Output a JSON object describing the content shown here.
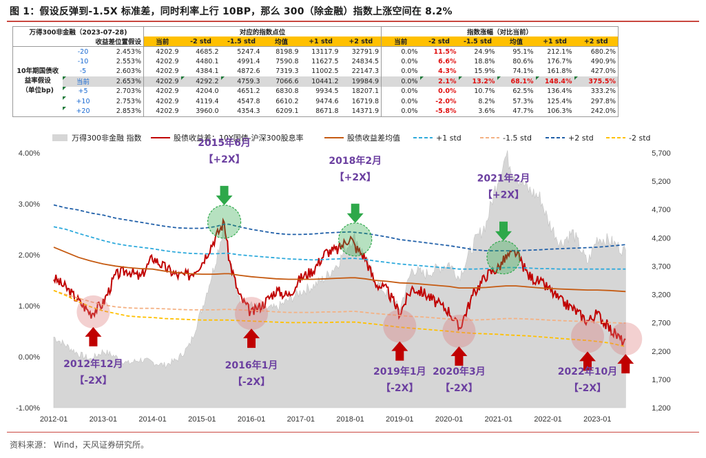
{
  "title": "图 1：假设反弹到-1.5X 标准差，同时利率上行 10BP，那么 300（除金融）指数上涨空间在 8.2%",
  "source": "资料来源：   Wind，天风证券研究所。",
  "table": {
    "corner_top": "万得300非金融（2023-07-28)",
    "corner_bottom": "收益差位置假设",
    "group_a": "对应的指数点位",
    "group_b": "指数涨幅（对比当前）",
    "row_group_label": "10年期国债收益率假设（单位bp)",
    "row_group_lines": [
      "10年期国债收",
      "益率假设",
      "（单位bp)"
    ],
    "columns": [
      "当前",
      "-2 std",
      "-1.5 std",
      "均值",
      "+1 std",
      "+2 std"
    ],
    "rows": [
      {
        "bp": "-20",
        "rate": "2.453%",
        "points": [
          "4202.9",
          "4685.2",
          "5247.4",
          "8198.9",
          "13117.9",
          "32791.9"
        ],
        "pct": [
          "0.0%",
          "11.5%",
          "24.9%",
          "95.1%",
          "212.1%",
          "680.2%"
        ]
      },
      {
        "bp": "-10",
        "rate": "2.553%",
        "points": [
          "4202.9",
          "4480.1",
          "4991.4",
          "7590.8",
          "11627.5",
          "24834.5"
        ],
        "pct": [
          "0.0%",
          "6.6%",
          "18.8%",
          "80.6%",
          "176.7%",
          "490.9%"
        ]
      },
      {
        "bp": "-5",
        "rate": "2.603%",
        "points": [
          "4202.9",
          "4384.1",
          "4872.6",
          "7319.3",
          "11002.5",
          "22147.3"
        ],
        "pct": [
          "0.0%",
          "4.3%",
          "15.9%",
          "74.1%",
          "161.8%",
          "427.0%"
        ]
      },
      {
        "bp": "当前",
        "rate": "2.653%",
        "points": [
          "4202.9",
          "4292.2",
          "4759.3",
          "7066.6",
          "10441.2",
          "19984.9"
        ],
        "pct": [
          "0.0%",
          "2.1%",
          "13.2%",
          "68.1%",
          "148.4%",
          "375.5%"
        ]
      },
      {
        "bp": "+5",
        "rate": "2.703%",
        "points": [
          "4202.9",
          "4204.0",
          "4651.2",
          "6830.8",
          "9934.5",
          "18207.1"
        ],
        "pct": [
          "0.0%",
          "0.0%",
          "10.7%",
          "62.5%",
          "136.4%",
          "333.2%"
        ]
      },
      {
        "bp": "+10",
        "rate": "2.753%",
        "points": [
          "4202.9",
          "4119.4",
          "4547.8",
          "6610.2",
          "9474.6",
          "16719.8"
        ],
        "pct": [
          "0.0%",
          "-2.0%",
          "8.2%",
          "57.3%",
          "125.4%",
          "297.8%"
        ]
      },
      {
        "bp": "+20",
        "rate": "2.853%",
        "points": [
          "4202.9",
          "3960.0",
          "4354.3",
          "6209.1",
          "8671.8",
          "14371.9"
        ],
        "pct": [
          "0.0%",
          "-5.8%",
          "3.6%",
          "47.7%",
          "106.3%",
          "242.0%"
        ]
      }
    ]
  },
  "chart_data": {
    "type": "line",
    "legend": [
      "万得300非金融 指数",
      "股债收益差：10Y国债-沪深300股息率",
      "股债收益差均值",
      "+1 std",
      "-1.5 std",
      "+2 std",
      "-2 std"
    ],
    "x_ticks": [
      "2012-01",
      "2013-01",
      "2014-01",
      "2015-01",
      "2016-01",
      "2017-01",
      "2018-01",
      "2019-01",
      "2020-01",
      "2021-01",
      "2022-01",
      "2023-01"
    ],
    "y_left_ticks": [
      "4.00%",
      "3.00%",
      "2.00%",
      "1.00%",
      "0.00%",
      "-1.00%"
    ],
    "y_right_ticks": [
      "5,700",
      "5,200",
      "4,700",
      "4,200",
      "3,700",
      "3,200",
      "2,700",
      "2,200",
      "1,700",
      "1,200"
    ],
    "ylim_left": [
      -1.0,
      4.0
    ],
    "ylim_right": [
      1200,
      5700
    ],
    "x": [
      2012.0,
      2012.25,
      2012.5,
      2012.75,
      2013.0,
      2013.25,
      2013.5,
      2013.75,
      2014.0,
      2014.25,
      2014.5,
      2014.75,
      2015.0,
      2015.25,
      2015.45,
      2015.55,
      2015.75,
      2016.0,
      2016.25,
      2016.5,
      2016.75,
      2017.0,
      2017.25,
      2017.5,
      2017.75,
      2018.0,
      2018.1,
      2018.3,
      2018.5,
      2018.75,
      2019.0,
      2019.25,
      2019.5,
      2019.75,
      2020.0,
      2020.2,
      2020.5,
      2020.75,
      2021.0,
      2021.15,
      2021.35,
      2021.6,
      2021.85,
      2022.0,
      2022.25,
      2022.5,
      2022.8,
      2023.0,
      2023.25,
      2023.57
    ],
    "index_values": [
      2450,
      2300,
      2150,
      2050,
      2200,
      2100,
      1980,
      2050,
      2000,
      1950,
      2050,
      2300,
      2950,
      3700,
      4450,
      3800,
      3150,
      3000,
      2950,
      2950,
      3100,
      3250,
      3350,
      3500,
      3750,
      4150,
      4200,
      3850,
      3450,
      3200,
      2950,
      3650,
      3550,
      3650,
      3750,
      3500,
      4100,
      4450,
      5300,
      5650,
      5300,
      5050,
      4900,
      4500,
      4100,
      4300,
      3750,
      4200,
      4150,
      3950
    ],
    "series": [
      {
        "name": "股债收益差：10Y国债-沪深300股息率",
        "color": "#c00000",
        "values": [
          1.55,
          1.35,
          1.1,
          0.85,
          1.05,
          1.6,
          1.7,
          1.55,
          1.95,
          1.75,
          1.6,
          1.6,
          1.85,
          2.3,
          2.65,
          1.9,
          1.2,
          0.85,
          1.05,
          1.3,
          1.2,
          1.55,
          1.7,
          2.05,
          2.1,
          2.35,
          2.15,
          1.95,
          1.45,
          1.3,
          0.85,
          1.35,
          1.25,
          1.05,
          0.9,
          0.55,
          1.25,
          1.6,
          1.75,
          1.95,
          2.05,
          1.6,
          1.45,
          1.35,
          1.1,
          0.95,
          0.7,
          0.85,
          0.55,
          0.25
        ]
      },
      {
        "name": "股债收益差均值",
        "color": "#c55a11",
        "values": [
          2.15,
          2.05,
          1.95,
          1.88,
          1.82,
          1.78,
          1.75,
          1.73,
          1.72,
          1.68,
          1.65,
          1.63,
          1.62,
          1.62,
          1.63,
          1.63,
          1.6,
          1.57,
          1.55,
          1.53,
          1.52,
          1.52,
          1.52,
          1.53,
          1.54,
          1.55,
          1.55,
          1.53,
          1.5,
          1.48,
          1.45,
          1.44,
          1.42,
          1.4,
          1.38,
          1.35,
          1.35,
          1.36,
          1.38,
          1.39,
          1.39,
          1.37,
          1.35,
          1.34,
          1.33,
          1.32,
          1.31,
          1.31,
          1.3,
          1.28
        ]
      },
      {
        "name": "+1 std",
        "color": "#2eaadc",
        "values": [
          2.55,
          2.5,
          2.42,
          2.35,
          2.28,
          2.22,
          2.18,
          2.15,
          2.12,
          2.08,
          2.05,
          2.03,
          2.02,
          2.02,
          2.03,
          2.03,
          2.0,
          1.98,
          1.96,
          1.94,
          1.92,
          1.91,
          1.9,
          1.91,
          1.92,
          1.93,
          1.93,
          1.91,
          1.88,
          1.85,
          1.82,
          1.8,
          1.78,
          1.76,
          1.74,
          1.72,
          1.72,
          1.73,
          1.74,
          1.75,
          1.75,
          1.74,
          1.73,
          1.73,
          1.72,
          1.72,
          1.72,
          1.72,
          1.72,
          1.72
        ]
      },
      {
        "name": "-1.5 std",
        "color": "#f4b183",
        "values": [
          1.3,
          1.22,
          1.15,
          1.08,
          1.02,
          0.98,
          0.96,
          0.95,
          0.95,
          0.94,
          0.93,
          0.92,
          0.92,
          0.92,
          0.93,
          0.93,
          0.92,
          0.91,
          0.9,
          0.88,
          0.87,
          0.87,
          0.87,
          0.88,
          0.88,
          0.89,
          0.89,
          0.87,
          0.85,
          0.83,
          0.81,
          0.79,
          0.78,
          0.76,
          0.74,
          0.72,
          0.72,
          0.73,
          0.74,
          0.75,
          0.75,
          0.74,
          0.73,
          0.72,
          0.71,
          0.7,
          0.69,
          0.68,
          0.67,
          0.66
        ]
      },
      {
        "name": "+2 std",
        "color": "#1f5fa8",
        "values": [
          2.98,
          2.92,
          2.88,
          2.82,
          2.78,
          2.72,
          2.68,
          2.64,
          2.6,
          2.56,
          2.53,
          2.52,
          2.52,
          2.55,
          2.6,
          2.6,
          2.55,
          2.5,
          2.46,
          2.42,
          2.4,
          2.4,
          2.41,
          2.43,
          2.44,
          2.45,
          2.44,
          2.42,
          2.39,
          2.35,
          2.3,
          2.27,
          2.24,
          2.21,
          2.18,
          2.15,
          2.1,
          2.08,
          2.08,
          2.08,
          2.08,
          2.09,
          2.1,
          2.11,
          2.12,
          2.13,
          2.14,
          2.15,
          2.17,
          2.2
        ]
      },
      {
        "name": "-2 std",
        "color": "#ffc000",
        "values": [
          1.3,
          1.2,
          1.08,
          0.98,
          0.9,
          0.85,
          0.8,
          0.78,
          0.77,
          0.75,
          0.74,
          0.73,
          0.72,
          0.72,
          0.72,
          0.72,
          0.71,
          0.7,
          0.69,
          0.68,
          0.67,
          0.67,
          0.67,
          0.67,
          0.68,
          0.68,
          0.68,
          0.66,
          0.64,
          0.61,
          0.58,
          0.56,
          0.54,
          0.52,
          0.5,
          0.48,
          0.46,
          0.45,
          0.44,
          0.43,
          0.42,
          0.41,
          0.39,
          0.38,
          0.36,
          0.34,
          0.32,
          0.3,
          0.27,
          0.2
        ]
      }
    ],
    "annotations": [
      {
        "text": "2015年6月",
        "sub": "【+2X】",
        "x": 2015.45,
        "y": 2.65,
        "dir": "down",
        "color": "#2ea84a"
      },
      {
        "text": "2018年2月",
        "sub": "【+2X】",
        "x": 2018.1,
        "y": 2.3,
        "dir": "down",
        "color": "#2ea84a"
      },
      {
        "text": "2021年2月",
        "sub": "【+2X】",
        "x": 2021.1,
        "y": 1.95,
        "dir": "down",
        "color": "#2ea84a"
      },
      {
        "text": "2012年12月",
        "sub": "【-2X】",
        "x": 2012.8,
        "y": 0.88,
        "dir": "up",
        "color": "#c00000"
      },
      {
        "text": "2016年1月",
        "sub": "【-2X】",
        "x": 2016.0,
        "y": 0.85,
        "dir": "up",
        "color": "#c00000"
      },
      {
        "text": "2019年1月",
        "sub": "【-2X】",
        "x": 2019.0,
        "y": 0.6,
        "dir": "up",
        "color": "#c00000"
      },
      {
        "text": "2020年3月",
        "sub": "【-2X】",
        "x": 2020.2,
        "y": 0.5,
        "dir": "up",
        "color": "#c00000"
      },
      {
        "text": "2022年10月",
        "sub": "【-2X】",
        "x": 2022.8,
        "y": 0.4,
        "dir": "up",
        "color": "#c00000"
      },
      {
        "text": "",
        "sub": "",
        "x": 2023.57,
        "y": 0.35,
        "dir": "up",
        "color": "#c00000"
      }
    ]
  }
}
